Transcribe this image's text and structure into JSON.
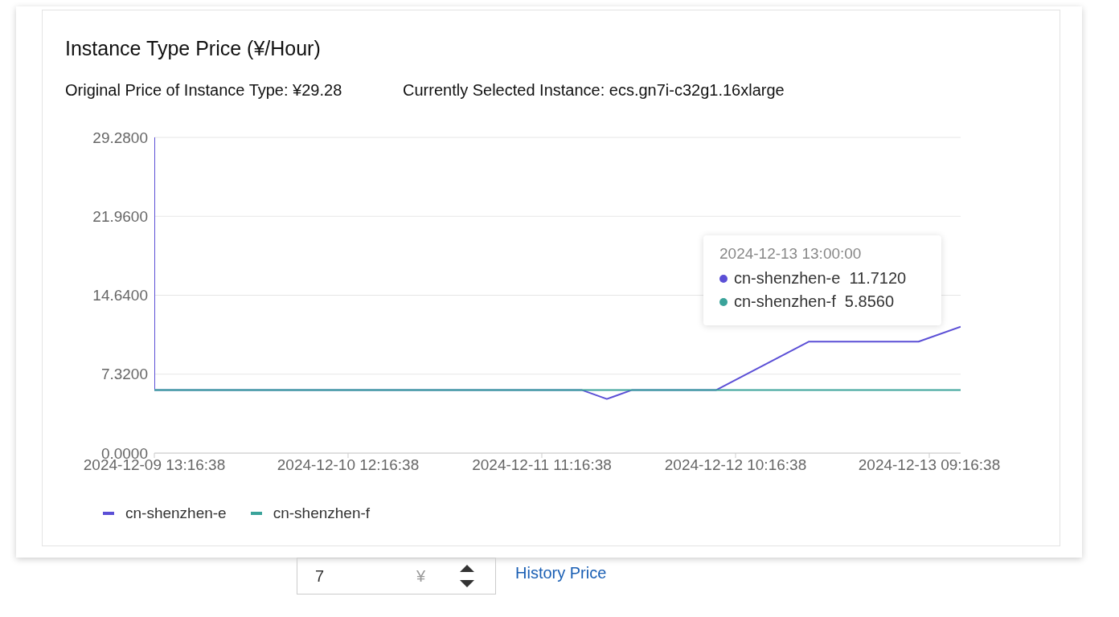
{
  "chart_data": {
    "type": "line",
    "title": "Instance Type Price (¥/Hour)",
    "subtitle": "Original Price of Instance Type: ¥29.28",
    "series": [
      {
        "name": "cn-shenzhen-e",
        "color": "#5b4fd6",
        "x": [
          "2024-12-09T13:16:38",
          "2024-12-09T13:16:38",
          "2024-12-11T16:00",
          "2024-12-11T19:00",
          "2024-12-11T22:00",
          "2024-12-12T08:00",
          "2024-12-12T19:00",
          "2024-12-13T08:00",
          "2024-12-13T13:00"
        ],
        "values": [
          29.28,
          5.856,
          5.856,
          5.02,
          5.856,
          5.856,
          10.34,
          10.34,
          11.712
        ]
      },
      {
        "name": "cn-shenzhen-f",
        "color": "#3aa39a",
        "x": [
          "2024-12-09T13:16:38",
          "2024-12-13T13:00"
        ],
        "values": [
          5.856,
          5.856
        ]
      }
    ],
    "xlim": [
      "2024-12-09T13:16:38",
      "2024-12-13T13:00"
    ],
    "xticks": [
      {
        "value": "2024-12-09T13:16:38",
        "label": "2024-12-09 13:16:38"
      },
      {
        "value": "2024-12-10T12:16:38",
        "label": "2024-12-10 12:16:38"
      },
      {
        "value": "2024-12-11T11:16:38",
        "label": "2024-12-11 11:16:38"
      },
      {
        "value": "2024-12-12T10:16:38",
        "label": "2024-12-12 10:16:38"
      },
      {
        "value": "2024-12-13T09:16:38",
        "label": "2024-12-13 09:16:38"
      }
    ],
    "ylim": [
      0,
      29.28
    ],
    "yticks": [
      {
        "value": 0,
        "label": "0.0000"
      },
      {
        "value": 7.32,
        "label": "7.3200"
      },
      {
        "value": 14.64,
        "label": "14.6400"
      },
      {
        "value": 21.96,
        "label": "21.9600"
      },
      {
        "value": 29.28,
        "label": "29.2800"
      }
    ],
    "grid": "y",
    "legend": "bottom left",
    "marker": "none",
    "line_style": "solid",
    "annotations": [
      "2024-12-13 13:00:00",
      "cn-shenzhen-e  11.7120",
      "cn-shenzhen-f  5.8560",
      "Currently Selected Instance: ecs.gn7i-c32g1.16xlarge",
      "7",
      "¥",
      "History Price"
    ]
  }
}
